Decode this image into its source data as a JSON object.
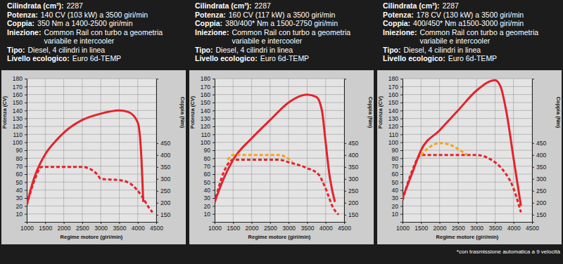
{
  "chart_data": [
    {
      "type": "line",
      "specs": [
        {
          "label": "Cilindrata (cm³):",
          "value": [
            "2287"
          ]
        },
        {
          "label": "Potenza:",
          "value": [
            "140 CV (103 kW) a 3500 giri/min"
          ]
        },
        {
          "label": "Coppia:",
          "value": [
            "350 Nm a 1400-2500 giri/min"
          ]
        },
        {
          "label": "Iniezione:",
          "value": [
            "Common Rail con turbo a geometria",
            "variabile e intercooler"
          ]
        },
        {
          "label": "Tipo:",
          "value": [
            "Diesel, 4 cilindri in linea"
          ]
        },
        {
          "label": "Livello ecologico:",
          "value": [
            "Euro 6d-TEMP"
          ]
        }
      ],
      "x_label": "Regime motore (giri/min)",
      "y_label": "Potenza (CV)",
      "y2_label": "Coppia (Nm)",
      "xlim": [
        1000,
        4500
      ],
      "xticks": [
        1000,
        1500,
        2000,
        2500,
        3000,
        3500,
        4000,
        4500
      ],
      "ylim": [
        0,
        180
      ],
      "yticks": [
        10,
        20,
        30,
        40,
        50,
        60,
        70,
        80,
        90,
        100,
        110,
        120,
        130,
        140,
        150,
        160,
        170,
        180
      ],
      "y2lim": [
        120,
        720
      ],
      "y2ticks": [
        150,
        200,
        250,
        300,
        350,
        400,
        450
      ],
      "grid": true,
      "series": [
        {
          "color": "#e4232b",
          "line_style": "solid",
          "x": [
            1000,
            1200,
            1500,
            1750,
            2000,
            2500,
            3000,
            3500,
            3750,
            4000,
            4100,
            4150
          ],
          "values": [
            22,
            55,
            85,
            100,
            112,
            128,
            136,
            140,
            138,
            125,
            80,
            25
          ]
        },
        {
          "color": "#e4232b",
          "line_style": "dashed",
          "axis": "y2",
          "x": [
            1000,
            1200,
            1400,
            2500,
            2900,
            3000,
            3500,
            3800,
            4100,
            4300,
            4400
          ],
          "values": [
            190,
            290,
            350,
            350,
            320,
            300,
            295,
            280,
            230,
            180,
            160
          ]
        }
      ]
    },
    {
      "type": "line",
      "specs": [
        {
          "label": "Cilindrata (cm³):",
          "value": [
            "2287"
          ]
        },
        {
          "label": "Potenza:",
          "value": [
            "160 CV (117 kW) a 3500 giri/min"
          ]
        },
        {
          "label": "Coppia:",
          "value": [
            "380/400* Nm a 1500-2750 giri/min"
          ]
        },
        {
          "label": "Iniezione:",
          "value": [
            "Common Rail con turbo a geometria",
            "variabile e intercooler"
          ]
        },
        {
          "label": "Tipo:",
          "value": [
            "Diesel, 4 cilindri in linea"
          ]
        },
        {
          "label": "Livello ecologico:",
          "value": [
            "Euro 6d-TEMP"
          ]
        }
      ],
      "x_label": "Regime motore (giri/min)",
      "y_label": "Potenza (CV)",
      "y2_label": "Coppia (Nm)",
      "xlim": [
        1000,
        4500
      ],
      "xticks": [
        1000,
        1500,
        2000,
        2500,
        3000,
        3500,
        4000,
        4500
      ],
      "ylim": [
        0,
        180
      ],
      "yticks": [
        10,
        20,
        30,
        40,
        50,
        60,
        70,
        80,
        90,
        100,
        110,
        120,
        130,
        140,
        150,
        160,
        170,
        180
      ],
      "y2lim": [
        120,
        720
      ],
      "y2ticks": [
        150,
        200,
        250,
        300,
        350,
        400,
        450
      ],
      "grid": true,
      "series": [
        {
          "color": "#e4232b",
          "line_style": "solid",
          "x": [
            1000,
            1250,
            1500,
            2000,
            2500,
            3000,
            3250,
            3500,
            3750,
            3900,
            4000,
            4100,
            4250
          ],
          "values": [
            25,
            55,
            78,
            105,
            128,
            150,
            157,
            160,
            157,
            140,
            100,
            60,
            25
          ]
        },
        {
          "color": "#e4232b",
          "line_style": "dashed",
          "axis": "y2",
          "x": [
            1000,
            1250,
            1500,
            2750,
            3000,
            3500,
            3800,
            4000,
            4200,
            4350
          ],
          "values": [
            200,
            330,
            380,
            380,
            370,
            345,
            320,
            260,
            180,
            150
          ]
        },
        {
          "color": "#f7a21b",
          "line_style": "dashed",
          "axis": "y2",
          "x": [
            1350,
            1500,
            2750,
            3100
          ],
          "values": [
            380,
            400,
            400,
            372
          ]
        }
      ]
    },
    {
      "type": "line",
      "specs": [
        {
          "label": "Cilindrata (cm³):",
          "value": [
            "2287"
          ]
        },
        {
          "label": "Potenza:",
          "value": [
            "178 CV (130 kW) a 3500 giri/min"
          ]
        },
        {
          "label": "Coppia:",
          "value": [
            "400/450* Nm a1500-3000 giri/min"
          ]
        },
        {
          "label": "Iniezione:",
          "value": [
            "Common Rail con turbo a geometria",
            "variabile e intercooler"
          ]
        },
        {
          "label": "Tipo:",
          "value": [
            "Diesel, 4 cilindri in linea"
          ]
        },
        {
          "label": "Livello ecologico:",
          "value": [
            "Euro 6d-TEMP"
          ]
        }
      ],
      "x_label": "Regime motore (giri/min)",
      "y_label": "Potenza (CV)",
      "y2_label": "Coppia (Nm)",
      "xlim": [
        1000,
        4500
      ],
      "xticks": [
        1000,
        1500,
        2000,
        2500,
        3000,
        3500,
        4000,
        4500
      ],
      "ylim": [
        0,
        180
      ],
      "yticks": [
        10,
        20,
        30,
        40,
        50,
        60,
        70,
        80,
        90,
        100,
        110,
        120,
        130,
        140,
        150,
        160,
        170,
        180
      ],
      "y2lim": [
        120,
        720
      ],
      "y2ticks": [
        150,
        200,
        250,
        300,
        350,
        400,
        450
      ],
      "grid": true,
      "annotations": [
        "*con trasmissione automatica a 9 velocità"
      ],
      "series": [
        {
          "color": "#e4232b",
          "line_style": "solid",
          "x": [
            1000,
            1250,
            1500,
            2000,
            2500,
            3000,
            3500,
            3650,
            3800,
            4000,
            4200
          ],
          "values": [
            30,
            60,
            90,
            115,
            140,
            165,
            178,
            170,
            140,
            80,
            20
          ]
        },
        {
          "color": "#e4232b",
          "line_style": "dashed",
          "axis": "y2",
          "x": [
            1000,
            1250,
            1500,
            3000,
            3400,
            3700,
            4000,
            4200
          ],
          "values": [
            210,
            330,
            400,
            400,
            380,
            340,
            260,
            160
          ]
        },
        {
          "color": "#f7a21b",
          "line_style": "dashed",
          "axis": "y2",
          "x": [
            1500,
            1750,
            2000,
            2250,
            2500,
            2750
          ],
          "values": [
            400,
            435,
            450,
            445,
            425,
            400
          ]
        }
      ]
    }
  ]
}
